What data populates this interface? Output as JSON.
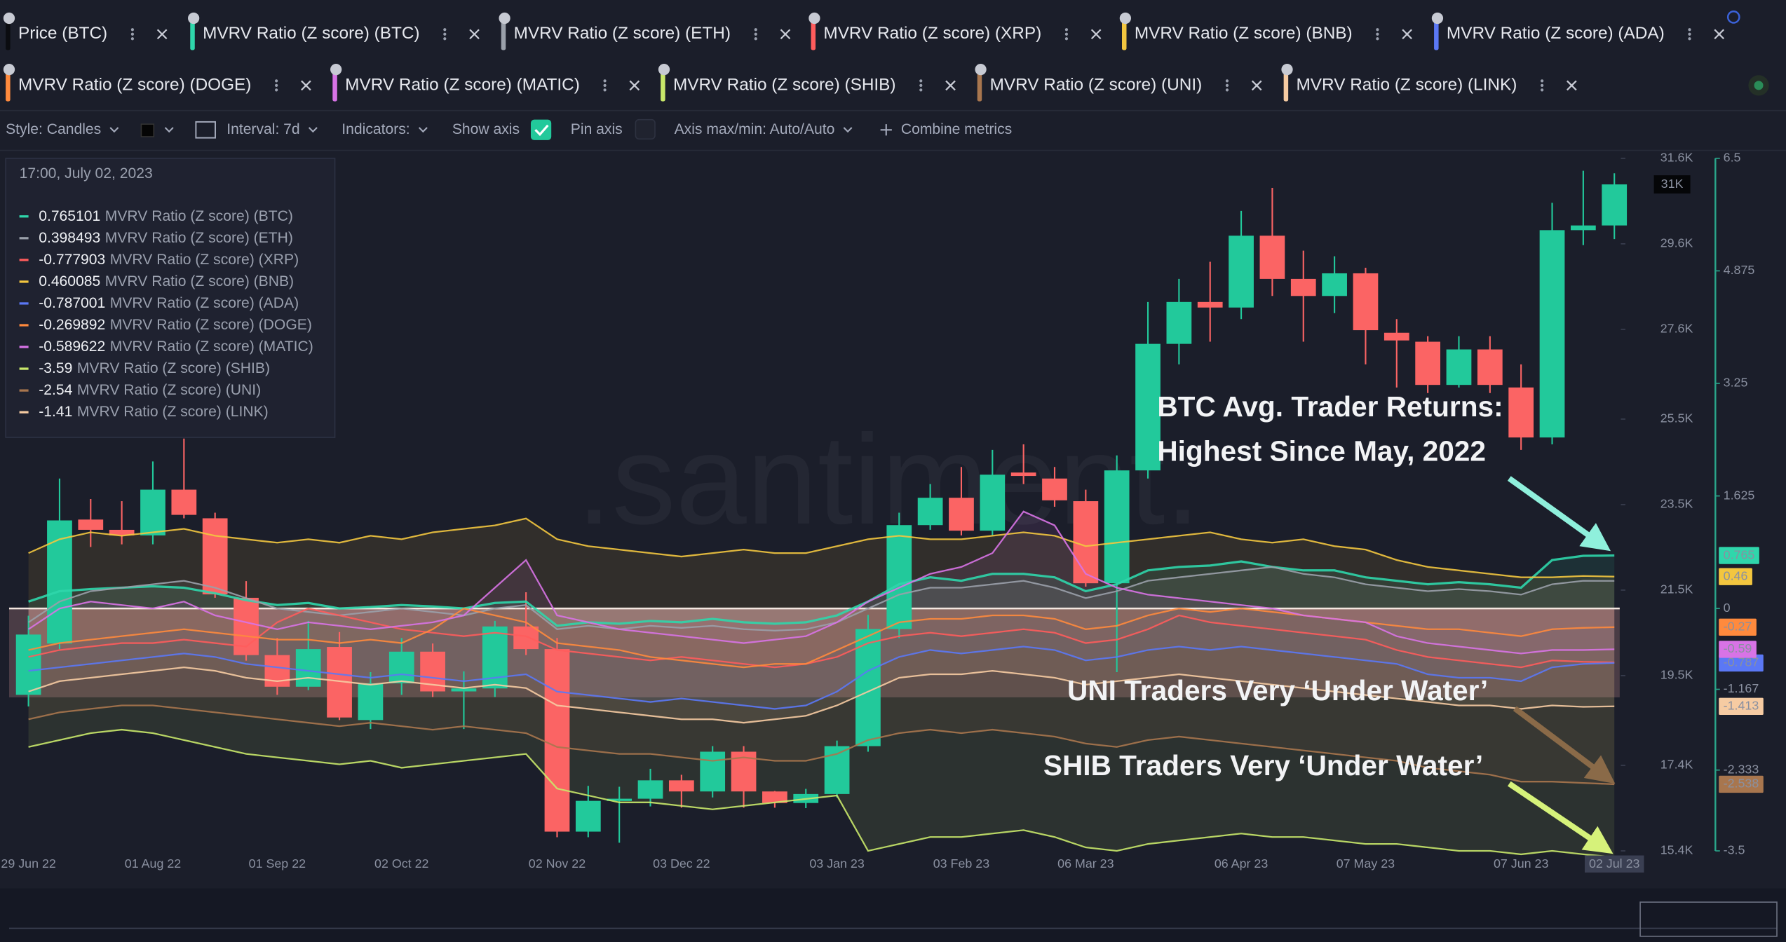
{
  "tabs": [
    "Price (BTC)"
  ],
  "toolbar": {
    "style": "Style: Candles",
    "interval": "Interval: 7d",
    "indicators": "Indicators:",
    "show_axis": "Show axis",
    "pin_axis": "Pin axis",
    "axis_minmax": "Axis max/min: Auto/Auto",
    "combine": "Combine metrics"
  },
  "tooltip": {
    "date": "17:00, July 02, 2023",
    "values": [
      "0.765101",
      "0.398493",
      "-0.777903",
      "0.460085",
      "-0.787001",
      "-0.269892",
      "-0.589622",
      "-3.59",
      "-2.54",
      "-1.41"
    ]
  },
  "watermark": ".santiment.",
  "annotations": [
    "BTC Avg. Trader Returns:",
    "Highest Since May, 2022",
    "UNI Traders Very ‘Under Water’",
    "SHIB Traders Very ‘Under Water’"
  ],
  "chart_data": {
    "type": "candlestick",
    "categories": [
      "29 Jun 22",
      null,
      null,
      null,
      "01 Aug 22",
      null,
      null,
      null,
      "01 Sep 22",
      null,
      null,
      null,
      "02 Oct 22",
      null,
      null,
      null,
      null,
      "02 Nov 22",
      null,
      null,
      null,
      "03 Dec 22",
      null,
      null,
      null,
      null,
      "03 Jan 23",
      null,
      null,
      null,
      "03 Feb 23",
      null,
      null,
      null,
      "06 Mar 23",
      null,
      null,
      null,
      null,
      "06 Apr 23",
      null,
      null,
      null,
      "07 May 23",
      null,
      null,
      null,
      null,
      "07 Jun 23",
      null,
      null,
      "02 Jul 23"
    ],
    "candles": {
      "up_color": "#22c99b",
      "down_color": "#fb6464",
      "open": [
        19050,
        20250,
        23150,
        22910,
        22780,
        23850,
        23180,
        21320,
        19980,
        19240,
        20170,
        18460,
        19320,
        20060,
        19130,
        19200,
        20650,
        20120,
        15850,
        16570,
        16620,
        17050,
        16790,
        17720,
        16790,
        16520,
        16730,
        17850,
        20590,
        23020,
        23660,
        22890,
        24250,
        24110,
        23580,
        21660,
        24300,
        27260,
        28240,
        28110,
        29790,
        28780,
        28380,
        28910,
        27520,
        27310,
        26300,
        27130,
        26240,
        25070,
        29920,
        30030
      ],
      "high": [
        20900,
        24110,
        23630,
        23580,
        24510,
        25045,
        23310,
        21710,
        20380,
        20780,
        20520,
        19580,
        20380,
        20250,
        19600,
        20780,
        21450,
        20380,
        16920,
        16900,
        17320,
        17180,
        17850,
        17850,
        16800,
        16850,
        17980,
        20920,
        23310,
        23980,
        24380,
        24780,
        24910,
        24380,
        23850,
        24650,
        28240,
        28780,
        29180,
        30370,
        30910,
        29440,
        29310,
        29040,
        27840,
        27440,
        27440,
        27440,
        26780,
        30560,
        31310,
        31250
      ],
      "low": [
        18780,
        20120,
        22510,
        22570,
        22570,
        23180,
        21320,
        19850,
        19050,
        19160,
        18460,
        18250,
        19050,
        19000,
        18250,
        19000,
        19980,
        15720,
        15720,
        15590,
        16440,
        16410,
        16650,
        16410,
        16410,
        16400,
        16650,
        17720,
        20380,
        22910,
        22780,
        22780,
        23980,
        23450,
        21580,
        19580,
        24110,
        26780,
        27310,
        27840,
        28380,
        27310,
        27980,
        26780,
        26240,
        26110,
        26240,
        26110,
        24780,
        24910,
        29570,
        29710
      ],
      "close": [
        20460,
        23130,
        22910,
        22780,
        23850,
        23260,
        21400,
        19980,
        19240,
        20120,
        18520,
        19320,
        20060,
        19130,
        19200,
        20650,
        20120,
        15850,
        16570,
        16620,
        17050,
        16790,
        17720,
        16790,
        16520,
        16730,
        17850,
        20590,
        23020,
        23660,
        22890,
        24200,
        24170,
        23600,
        21660,
        24300,
        27260,
        28240,
        28110,
        29790,
        28780,
        28380,
        28910,
        27580,
        27340,
        26300,
        27130,
        26300,
        25070,
        29920,
        30030,
        30990
      ]
    },
    "last_price_label": "31K",
    "ylim": [
      15400,
      31600
    ],
    "yticks": [
      {
        "value": 31600,
        "label": "31.6K"
      },
      {
        "value": 29600,
        "label": "29.6K"
      },
      {
        "value": 27600,
        "label": "27.6K"
      },
      {
        "value": 25500,
        "label": "25.5K"
      },
      {
        "value": 23500,
        "label": "23.5K"
      },
      {
        "value": 21500,
        "label": "21.5K"
      },
      {
        "value": 19500,
        "label": "19.5K"
      },
      {
        "value": 17400,
        "label": "17.4K"
      },
      {
        "value": 15400,
        "label": "15.4K"
      }
    ],
    "y2lim": [
      -3.5,
      6.5
    ],
    "y2ticks": [
      6.5,
      4.875,
      3.25,
      1.625,
      0,
      -1.167,
      -2.333,
      -3.5
    ],
    "series": [
      {
        "name": "MVRV Ratio (Z score) (BTC)",
        "color": "#2fd6ab",
        "axis": "y2",
        "last_label": "0.765",
        "values": [
          0.1,
          0.25,
          0.28,
          0.3,
          0.32,
          0.3,
          0.22,
          0.12,
          0.05,
          0.08,
          0.0,
          0.02,
          0.05,
          0.03,
          0.0,
          0.08,
          0.1,
          -0.25,
          -0.2,
          -0.22,
          -0.18,
          -0.2,
          -0.15,
          -0.2,
          -0.22,
          -0.2,
          -0.1,
          0.1,
          0.35,
          0.45,
          0.4,
          0.5,
          0.5,
          0.45,
          0.25,
          0.35,
          0.55,
          0.6,
          0.62,
          0.68,
          0.6,
          0.55,
          0.55,
          0.45,
          0.4,
          0.35,
          0.38,
          0.35,
          0.3,
          0.7,
          0.76,
          0.765101
        ]
      },
      {
        "name": "MVRV Ratio (Z score) (ETH)",
        "color": "#9aa0aa",
        "axis": "y2",
        "values": [
          -0.2,
          0.1,
          0.25,
          0.3,
          0.35,
          0.4,
          0.3,
          0.15,
          0.0,
          -0.05,
          -0.1,
          -0.05,
          0.0,
          -0.05,
          -0.1,
          0.0,
          0.05,
          -0.3,
          -0.25,
          -0.3,
          -0.25,
          -0.28,
          -0.25,
          -0.3,
          -0.32,
          -0.3,
          -0.2,
          0.0,
          0.2,
          0.3,
          0.3,
          0.35,
          0.4,
          0.3,
          0.15,
          0.25,
          0.4,
          0.45,
          0.5,
          0.55,
          0.6,
          0.5,
          0.45,
          0.35,
          0.3,
          0.25,
          0.28,
          0.25,
          0.2,
          0.35,
          0.4,
          0.398493
        ]
      },
      {
        "name": "MVRV Ratio (Z score) (XRP)",
        "color": "#ff5c5c",
        "axis": "y2",
        "values": [
          -0.7,
          -0.6,
          -0.55,
          -0.5,
          -0.5,
          -0.45,
          -0.5,
          -0.55,
          -0.2,
          0.0,
          -0.1,
          -0.2,
          -0.3,
          -0.35,
          -0.4,
          -0.35,
          -0.4,
          -0.6,
          -0.65,
          -0.7,
          -0.75,
          -0.7,
          -0.75,
          -0.8,
          -0.85,
          -0.8,
          -0.7,
          -0.5,
          -0.4,
          -0.35,
          -0.4,
          -0.35,
          -0.3,
          -0.35,
          -0.5,
          -0.45,
          -0.3,
          -0.1,
          -0.2,
          -0.25,
          -0.3,
          -0.35,
          -0.4,
          -0.45,
          -0.6,
          -0.7,
          -0.75,
          -0.8,
          -0.85,
          -0.75,
          -0.77,
          -0.777903
        ]
      },
      {
        "name": "MVRV Ratio (Z score) (BNB)",
        "color": "#f3c63f",
        "axis": "y2",
        "last_label": "0.46",
        "values": [
          0.8,
          1.0,
          1.1,
          1.05,
          1.1,
          1.15,
          1.05,
          1.0,
          0.95,
          1.0,
          0.95,
          1.05,
          1.0,
          1.1,
          1.15,
          1.2,
          1.3,
          1.0,
          0.9,
          0.85,
          0.8,
          0.75,
          0.8,
          0.85,
          0.8,
          0.8,
          0.9,
          1.0,
          1.05,
          1.0,
          1.0,
          1.05,
          1.1,
          1.05,
          0.9,
          0.95,
          1.0,
          1.05,
          1.1,
          1.0,
          0.95,
          1.0,
          0.9,
          0.85,
          0.7,
          0.6,
          0.55,
          0.5,
          0.45,
          0.45,
          0.47,
          0.460085
        ]
      },
      {
        "name": "MVRV Ratio (Z score) (ADA)",
        "color": "#5b78f5",
        "axis": "y2",
        "last_label": "-0.787",
        "values": [
          -0.9,
          -0.85,
          -0.8,
          -0.75,
          -0.7,
          -0.65,
          -0.7,
          -0.8,
          -0.85,
          -0.9,
          -0.95,
          -1.0,
          -0.95,
          -1.0,
          -1.05,
          -1.0,
          -0.95,
          -1.2,
          -1.25,
          -1.3,
          -1.35,
          -1.3,
          -1.35,
          -1.4,
          -1.45,
          -1.4,
          -1.2,
          -0.9,
          -0.7,
          -0.6,
          -0.65,
          -0.6,
          -0.55,
          -0.6,
          -0.75,
          -0.7,
          -0.6,
          -0.55,
          -0.6,
          -0.55,
          -0.6,
          -0.65,
          -0.7,
          -0.75,
          -0.8,
          -0.95,
          -1.0,
          -1.0,
          -1.05,
          -0.85,
          -0.8,
          -0.787001
        ]
      },
      {
        "name": "MVRV Ratio (Z score) (DOGE)",
        "color": "#ff8a3d",
        "axis": "y2",
        "last_label": "-0.27",
        "values": [
          -0.6,
          -0.5,
          -0.45,
          -0.4,
          -0.35,
          -0.3,
          -0.35,
          -0.4,
          -0.45,
          -0.45,
          -0.5,
          -0.45,
          -0.5,
          -0.3,
          0.0,
          -0.1,
          -0.2,
          -0.5,
          -0.55,
          -0.6,
          -0.7,
          -0.75,
          -0.8,
          -0.85,
          -0.8,
          -0.8,
          -0.6,
          -0.4,
          -0.2,
          -0.15,
          -0.15,
          -0.1,
          -0.1,
          -0.15,
          -0.3,
          -0.25,
          -0.1,
          0.0,
          -0.05,
          0.0,
          -0.05,
          -0.1,
          -0.15,
          -0.2,
          -0.25,
          -0.3,
          -0.3,
          -0.35,
          -0.4,
          -0.3,
          -0.28,
          -0.269892
        ]
      },
      {
        "name": "MVRV Ratio (Z score) (MATIC)",
        "color": "#d873e6",
        "axis": "y2",
        "last_label": "-0.59",
        "values": [
          -0.3,
          0.0,
          0.1,
          0.05,
          0.0,
          0.1,
          -0.1,
          -0.2,
          -0.3,
          -0.2,
          -0.25,
          -0.3,
          -0.25,
          -0.2,
          -0.1,
          0.3,
          0.7,
          -0.1,
          -0.2,
          -0.3,
          -0.35,
          -0.4,
          -0.45,
          -0.5,
          -0.45,
          -0.4,
          -0.2,
          0.1,
          0.3,
          0.5,
          0.6,
          0.8,
          1.4,
          1.2,
          0.5,
          0.3,
          0.2,
          0.15,
          0.1,
          0.05,
          0.0,
          -0.1,
          -0.15,
          -0.2,
          -0.4,
          -0.5,
          -0.55,
          -0.6,
          -0.65,
          -0.6,
          -0.6,
          -0.589622
        ]
      },
      {
        "name": "MVRV Ratio (Z score) (SHIB)",
        "color": "#c9e86a",
        "axis": "y2",
        "values": [
          -2.0,
          -1.9,
          -1.8,
          -1.75,
          -1.8,
          -1.9,
          -2.0,
          -2.1,
          -2.15,
          -2.2,
          -2.25,
          -2.2,
          -2.3,
          -2.25,
          -2.2,
          -2.15,
          -2.1,
          -2.6,
          -2.7,
          -2.8,
          -2.8,
          -2.85,
          -2.9,
          -2.85,
          -2.8,
          -2.75,
          -2.7,
          -3.5,
          -3.4,
          -3.3,
          -3.3,
          -3.25,
          -3.2,
          -3.3,
          -3.45,
          -3.5,
          -3.4,
          -3.35,
          -3.3,
          -3.25,
          -3.3,
          -3.3,
          -3.35,
          -3.4,
          -3.4,
          -3.45,
          -3.5,
          -3.5,
          -3.55,
          -3.5,
          -3.55,
          -3.59
        ]
      },
      {
        "name": "MVRV Ratio (Z score) (UNI)",
        "color": "#a8764e",
        "axis": "y2",
        "last_label": "-2.538",
        "values": [
          -1.6,
          -1.5,
          -1.45,
          -1.4,
          -1.4,
          -1.45,
          -1.5,
          -1.55,
          -1.6,
          -1.65,
          -1.7,
          -1.65,
          -1.7,
          -1.75,
          -1.7,
          -1.75,
          -1.8,
          -2.0,
          -2.05,
          -2.1,
          -2.1,
          -2.15,
          -2.2,
          -2.15,
          -2.2,
          -2.2,
          -2.1,
          -1.9,
          -1.8,
          -1.75,
          -1.8,
          -1.75,
          -1.8,
          -1.85,
          -1.95,
          -2.0,
          -1.9,
          -1.85,
          -1.9,
          -1.95,
          -2.0,
          -2.05,
          -2.1,
          -2.15,
          -2.2,
          -2.3,
          -2.35,
          -2.4,
          -2.5,
          -2.5,
          -2.52,
          -2.538
        ]
      },
      {
        "name": "MVRV Ratio (Z score) (LINK)",
        "color": "#f6cba2",
        "axis": "y2",
        "last_label": "-1.413",
        "values": [
          -1.2,
          -1.05,
          -1.0,
          -0.95,
          -0.9,
          -0.85,
          -0.9,
          -1.0,
          -1.05,
          -1.0,
          -1.05,
          -1.1,
          -1.05,
          -1.1,
          -1.15,
          -1.1,
          -1.15,
          -1.4,
          -1.45,
          -1.5,
          -1.55,
          -1.6,
          -1.6,
          -1.65,
          -1.6,
          -1.55,
          -1.4,
          -1.2,
          -1.0,
          -0.95,
          -0.95,
          -0.9,
          -0.95,
          -1.0,
          -1.1,
          -1.05,
          -1.0,
          -0.95,
          -1.0,
          -1.05,
          -1.1,
          -1.15,
          -1.2,
          -1.25,
          -1.3,
          -1.35,
          -1.4,
          -1.4,
          -1.45,
          -1.4,
          -1.42,
          -1.413
        ]
      }
    ]
  }
}
